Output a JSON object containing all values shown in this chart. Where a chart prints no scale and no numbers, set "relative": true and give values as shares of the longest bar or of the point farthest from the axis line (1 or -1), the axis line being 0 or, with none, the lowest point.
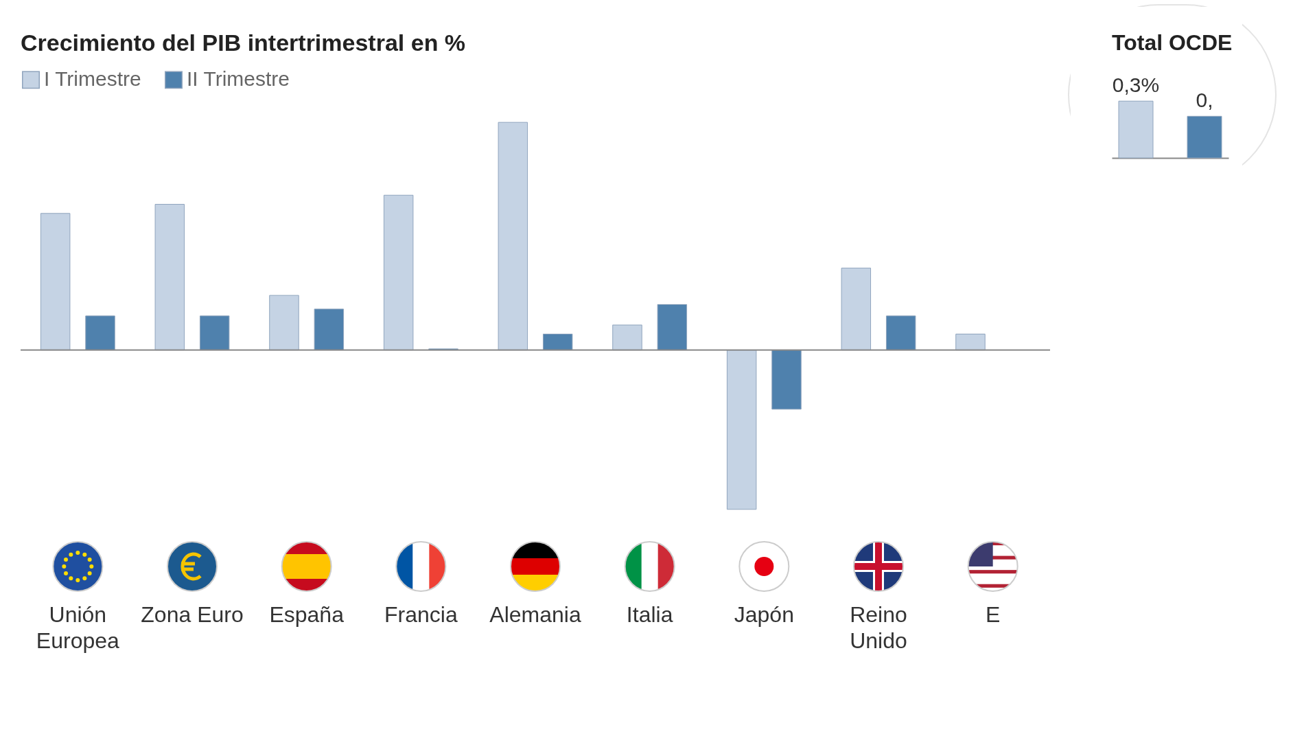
{
  "chart_data": [
    {
      "type": "bar",
      "title": "Crecimiento del PIB intertrimestral en %",
      "relative": true,
      "legend": "top",
      "categories": [
        "Unión\nEuropea",
        "Zona Euro",
        "España",
        "Francia",
        "Alemania",
        "Italia",
        "Japón",
        "Reino\nUnido",
        "E"
      ],
      "series": [
        {
          "name": "I Trimestre",
          "color": "#c5d3e4",
          "values": [
            0.6,
            0.64,
            0.24,
            0.68,
            1,
            0.11,
            -0.7,
            0.36,
            0.07
          ]
        },
        {
          "name": "II Trimestre",
          "color": "#4f81ad",
          "values": [
            0.15,
            0.15,
            0.18,
            0.005,
            0.07,
            0.2,
            -0.26,
            0.15,
            null
          ]
        }
      ]
    },
    {
      "type": "bar",
      "title": "Total OCDE",
      "categories": [
        null,
        null
      ],
      "values": [
        0.3,
        0.22
      ],
      "colors": [
        "#c5d3e4",
        "#4f81ad"
      ],
      "value_labels": [
        "0,3%",
        "0,"
      ]
    }
  ]
}
